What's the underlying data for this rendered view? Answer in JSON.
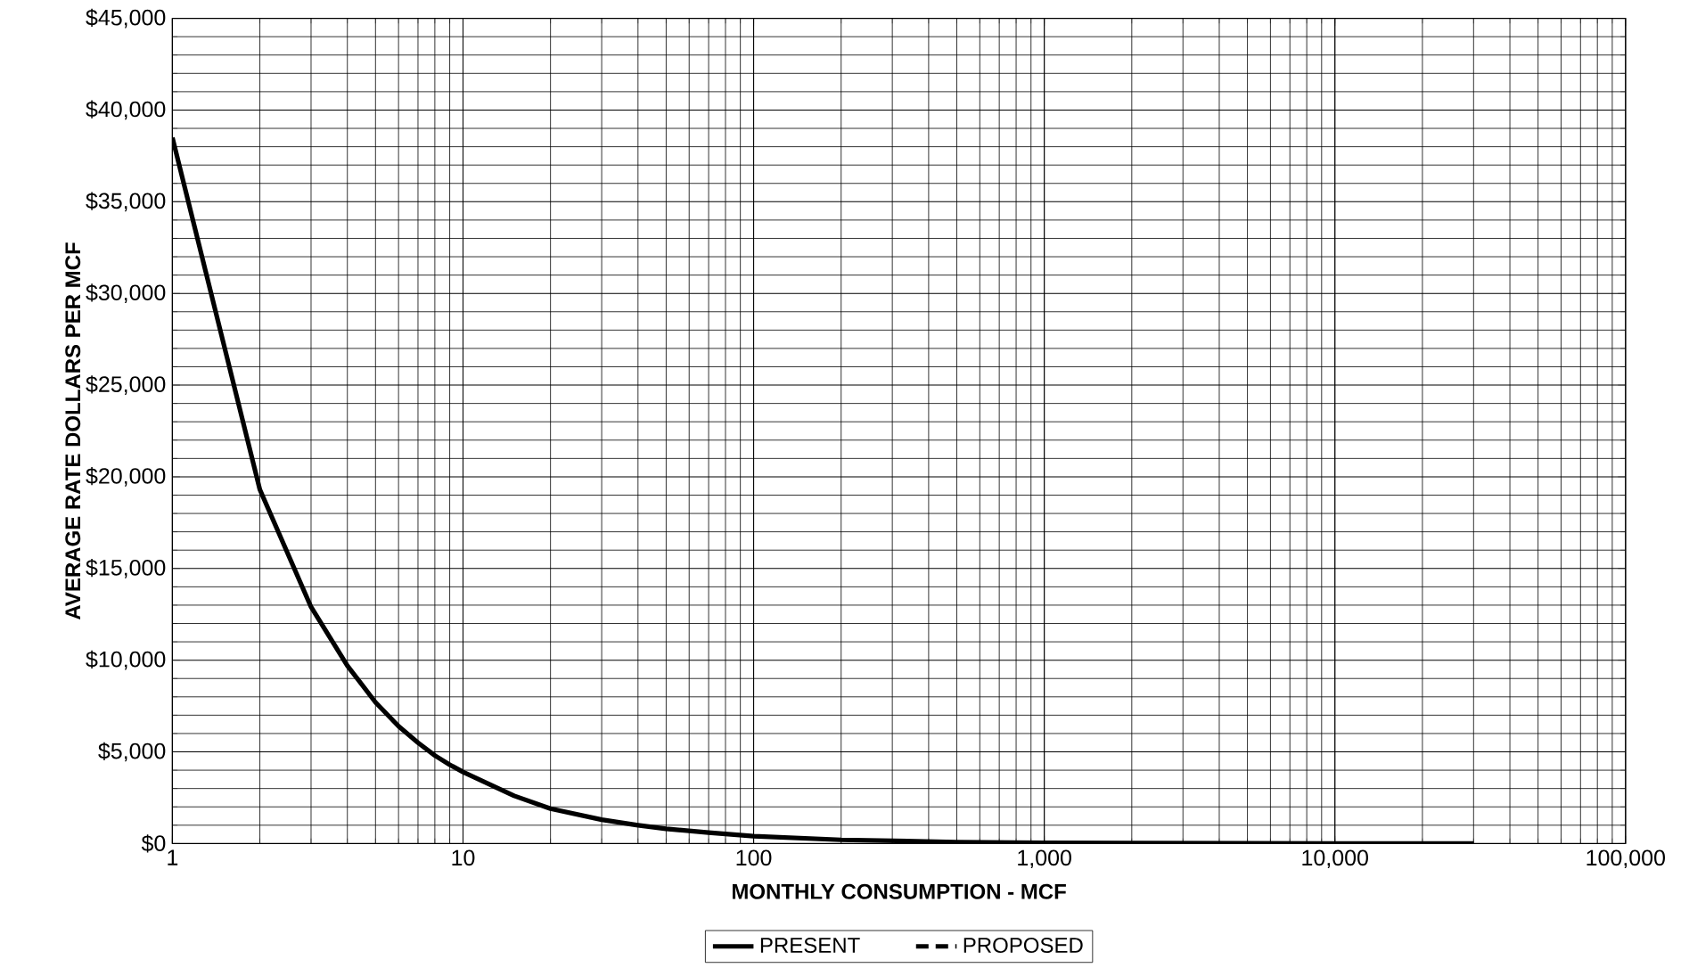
{
  "chart_data": {
    "type": "line",
    "xlabel": "MONTHLY CONSUMPTION - MCF",
    "ylabel": "AVERAGE RATE DOLLARS PER MCF",
    "x": [
      1,
      2,
      3,
      4,
      5,
      6,
      7,
      8,
      9,
      10,
      15,
      20,
      30,
      40,
      50,
      70,
      100,
      200,
      500,
      1000,
      2000,
      5000,
      10000,
      30000
    ],
    "series": [
      {
        "name": "PRESENT",
        "color": "#000000",
        "line_style": "solid",
        "values": [
          38500,
          19300,
          12900,
          9700,
          7700,
          6400,
          5500,
          4800,
          4300,
          3900,
          2600,
          1900,
          1300,
          1000,
          800,
          600,
          400,
          200,
          80,
          40,
          20,
          8,
          4,
          1
        ]
      },
      {
        "name": "PROPOSED",
        "color": "#000000",
        "line_style": "dashed",
        "values": [
          null,
          null,
          null,
          null,
          null,
          null,
          null,
          null,
          null,
          null,
          null,
          null,
          null,
          null,
          null,
          null,
          null,
          null,
          null,
          null,
          null,
          null,
          null,
          null
        ]
      }
    ],
    "log": "x",
    "grid": true,
    "legend": "bottom",
    "xlim": [
      1,
      100000
    ],
    "xticks": [
      {
        "value": 1,
        "label": "1"
      },
      {
        "value": 10,
        "label": "10"
      },
      {
        "value": 100,
        "label": "100"
      },
      {
        "value": 1000,
        "label": "1,000"
      },
      {
        "value": 10000,
        "label": "10,000"
      },
      {
        "value": 100000,
        "label": "100,000"
      }
    ],
    "ylim": [
      0,
      45000
    ],
    "yticks": [
      {
        "value": 0,
        "label": "$0"
      },
      {
        "value": 5000,
        "label": "$5,000"
      },
      {
        "value": 10000,
        "label": "$10,000"
      },
      {
        "value": 15000,
        "label": "$15,000"
      },
      {
        "value": 20000,
        "label": "$20,000"
      },
      {
        "value": 25000,
        "label": "$25,000"
      },
      {
        "value": 30000,
        "label": "$30,000"
      },
      {
        "value": 35000,
        "label": "$35,000"
      },
      {
        "value": 40000,
        "label": "$40,000"
      },
      {
        "value": 45000,
        "label": "$45,000"
      }
    ]
  }
}
